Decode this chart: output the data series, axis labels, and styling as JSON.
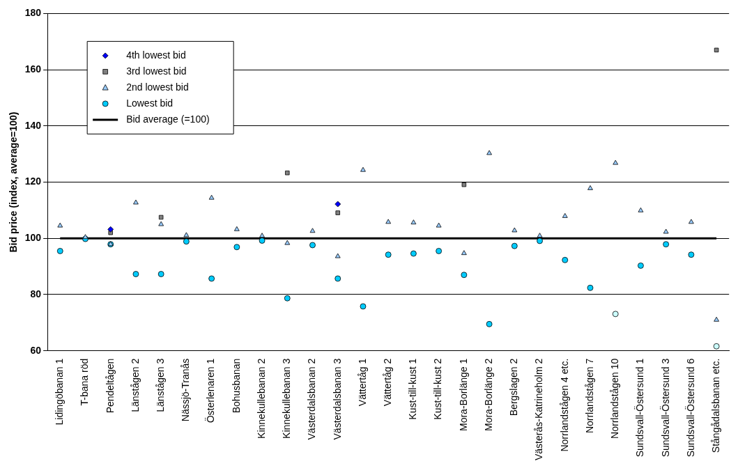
{
  "chart_data": {
    "type": "scatter",
    "ylabel": "Bid price (index, average=100)",
    "categories": [
      "Lidingöbanan 1",
      "T-bana röd",
      "Pendeltågen",
      "Länstågen 2",
      "Länstågen 3",
      "Nässjö-Tranås",
      "Österlenaren 1",
      "Bohusbanan",
      "Kinnekullebanan 2",
      "Kinnekullebanan 3",
      "Västerdalsbanan 2",
      "Västerdalsbanan 3",
      "Vättertåg 1",
      "Vättertåg 2",
      "Kust-till-kust 1",
      "Kust-till-kust 2",
      "Mora-Borlänge 1",
      "Mora-Borlänge 2",
      "Bergslagen 2",
      "Västerås-Katrineholm 2",
      "Norrlandstågen 4 etc.",
      "Norrlandstågen 7",
      "Norrlandstågen 10",
      "Sundsvall-Östersund 1",
      "Sundsvall-Östersund 3",
      "Sundsvall-Östersund 6",
      "Stångådalsbanan etc."
    ],
    "series": [
      {
        "name": "4th lowest bid",
        "color": "#0000ff",
        "marker": "diamond",
        "values": [
          null,
          null,
          103.2,
          null,
          null,
          null,
          null,
          null,
          null,
          null,
          null,
          112.2,
          null,
          null,
          null,
          null,
          null,
          null,
          null,
          null,
          null,
          null,
          null,
          null,
          null,
          null,
          null
        ]
      },
      {
        "name": "3rd lowest bid",
        "color": "#808080",
        "marker": "square",
        "values": [
          null,
          null,
          102,
          null,
          107.5,
          null,
          null,
          null,
          null,
          123.3,
          null,
          109.1,
          null,
          null,
          null,
          null,
          119.1,
          null,
          null,
          null,
          null,
          null,
          null,
          null,
          null,
          null,
          167
        ]
      },
      {
        "name": "2nd lowest bid",
        "color": "#99ccff",
        "marker": "triangle",
        "values": [
          104.5,
          100.4,
          97.9,
          112.7,
          105,
          101.1,
          114.4,
          103.2,
          100.9,
          98.3,
          102.6,
          93.6,
          124.3,
          105.8,
          105.6,
          104.5,
          94.7,
          130.3,
          102.8,
          100.9,
          107.9,
          117.8,
          126.8,
          109.9,
          102.3,
          105.8,
          71
        ]
      },
      {
        "name": "Lowest bid",
        "color": "#00ccff",
        "marker": "circle",
        "colors": [
          "#00ccff",
          "#00ccff",
          "#00ccff",
          "#00ccff",
          "#00ccff",
          "#00ccff",
          "#00ccff",
          "#00ccff",
          "#00ccff",
          "#00ccff",
          "#00ccff",
          "#00ccff",
          "#00ccff",
          "#00ccff",
          "#00ccff",
          "#00ccff",
          "#00ccff",
          "#00ccff",
          "#00ccff",
          "#00ccff",
          "#00ccff",
          "#00ccff",
          "#ccffff",
          "#00ccff",
          "#00ccff",
          "#00ccff",
          "#ccffff"
        ],
        "values": [
          95.5,
          99.8,
          97.9,
          87.3,
          87.3,
          98.9,
          85.7,
          96.9,
          99.2,
          78.7,
          97.6,
          85.7,
          75.8,
          94.2,
          94.6,
          95.5,
          87,
          69.5,
          97.3,
          99.1,
          92.3,
          82.4,
          73.1,
          90.3,
          97.9,
          94.2,
          61.6
        ]
      },
      {
        "name": "Bid average (=100)",
        "type": "line",
        "color": "#000000",
        "marker": "none",
        "values": [
          100,
          100,
          100,
          100,
          100,
          100,
          100,
          100,
          100,
          100,
          100,
          100,
          100,
          100,
          100,
          100,
          100,
          100,
          100,
          100,
          100,
          100,
          100,
          100,
          100,
          100,
          100
        ]
      }
    ],
    "ylim": [
      60,
      180
    ],
    "yticks": [
      60,
      80,
      100,
      120,
      140,
      160,
      180
    ],
    "grid": "y",
    "legend": "top left"
  }
}
